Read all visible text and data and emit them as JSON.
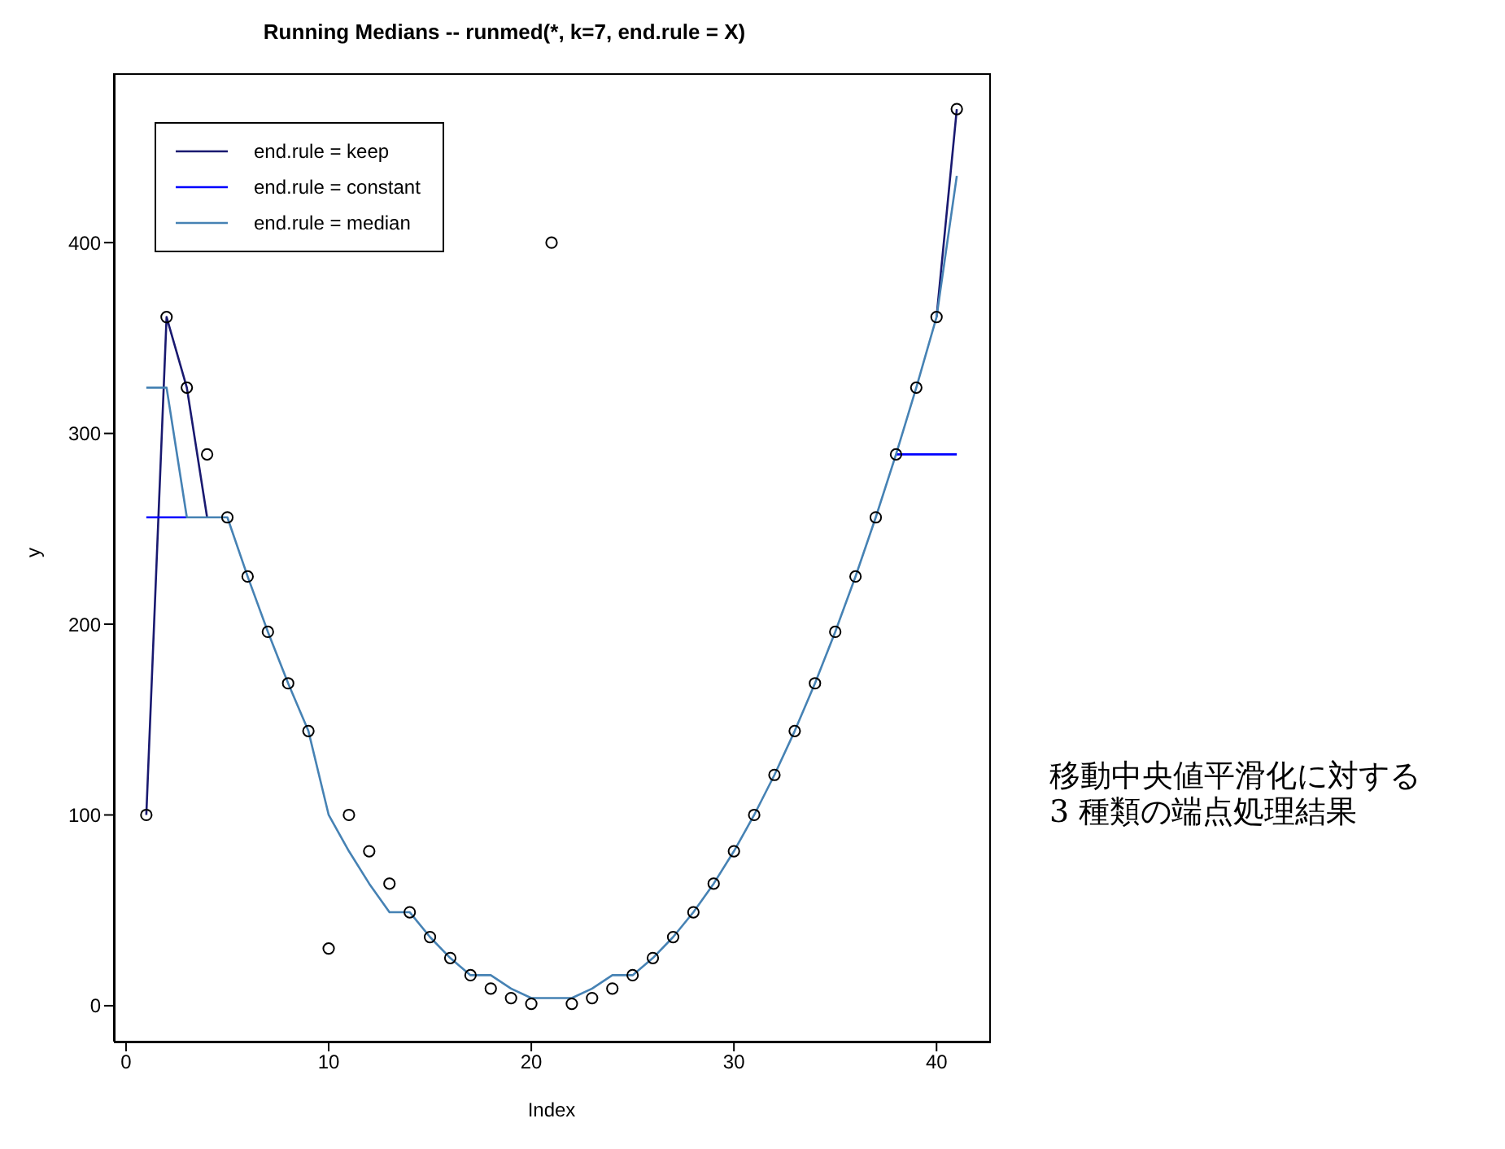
{
  "chart_data": {
    "type": "line",
    "title": "Running Medians -- runmed(*, k=7, end.rule = X)",
    "xlabel": "Index",
    "ylabel": "y",
    "x": [
      1,
      2,
      3,
      4,
      5,
      6,
      7,
      8,
      9,
      10,
      11,
      12,
      13,
      14,
      15,
      16,
      17,
      18,
      19,
      20,
      21,
      22,
      23,
      24,
      25,
      26,
      27,
      28,
      29,
      30,
      31,
      32,
      33,
      34,
      35,
      36,
      37,
      38,
      39,
      40,
      41
    ],
    "series": [
      {
        "type": "scatter",
        "marker": "circle",
        "color": "#000000",
        "values": [
          100,
          361,
          324,
          289,
          256,
          225,
          196,
          169,
          144,
          30,
          100,
          81,
          64,
          49,
          36,
          25,
          16,
          9,
          4,
          1,
          400,
          1,
          4,
          9,
          16,
          25,
          36,
          49,
          64,
          81,
          100,
          121,
          144,
          169,
          196,
          225,
          256,
          289,
          324,
          361,
          470
        ]
      },
      {
        "name": "end.rule = keep",
        "color": "#191970",
        "values": [
          100,
          361,
          324,
          256,
          null,
          null,
          null,
          null,
          null,
          null,
          null,
          null,
          null,
          null,
          null,
          null,
          null,
          null,
          null,
          null,
          null,
          null,
          null,
          null,
          null,
          null,
          null,
          null,
          null,
          null,
          null,
          null,
          null,
          null,
          null,
          null,
          null,
          null,
          null,
          361,
          470
        ]
      },
      {
        "name": "end.rule = constant",
        "color": "#0000ff",
        "values": [
          256,
          256,
          256,
          null,
          null,
          null,
          null,
          null,
          null,
          null,
          null,
          null,
          null,
          null,
          null,
          null,
          null,
          null,
          null,
          null,
          null,
          null,
          null,
          null,
          null,
          null,
          null,
          null,
          null,
          null,
          null,
          null,
          null,
          null,
          null,
          null,
          null,
          289,
          289,
          289,
          289
        ]
      },
      {
        "name": "end.rule = median",
        "color": "#4682b4",
        "values": [
          324,
          324,
          256,
          256,
          256,
          225,
          196,
          169,
          144,
          100,
          81,
          64,
          49,
          49,
          36,
          25,
          16,
          16,
          9,
          4,
          4,
          4,
          9,
          16,
          16,
          25,
          36,
          49,
          64,
          81,
          100,
          121,
          144,
          169,
          196,
          225,
          256,
          289,
          324,
          361,
          435
        ]
      }
    ],
    "xlim": [
      -0.6,
      42.6
    ],
    "xticks": [
      0,
      10,
      20,
      30,
      40
    ],
    "ylim": [
      -18.8,
      488.8
    ],
    "yticks": [
      0,
      100,
      200,
      300,
      400
    ],
    "grid": false,
    "legend": "top left",
    "annotations": [
      "移動中央値平滑化に対する\n3 種類の端点処理結果"
    ]
  }
}
